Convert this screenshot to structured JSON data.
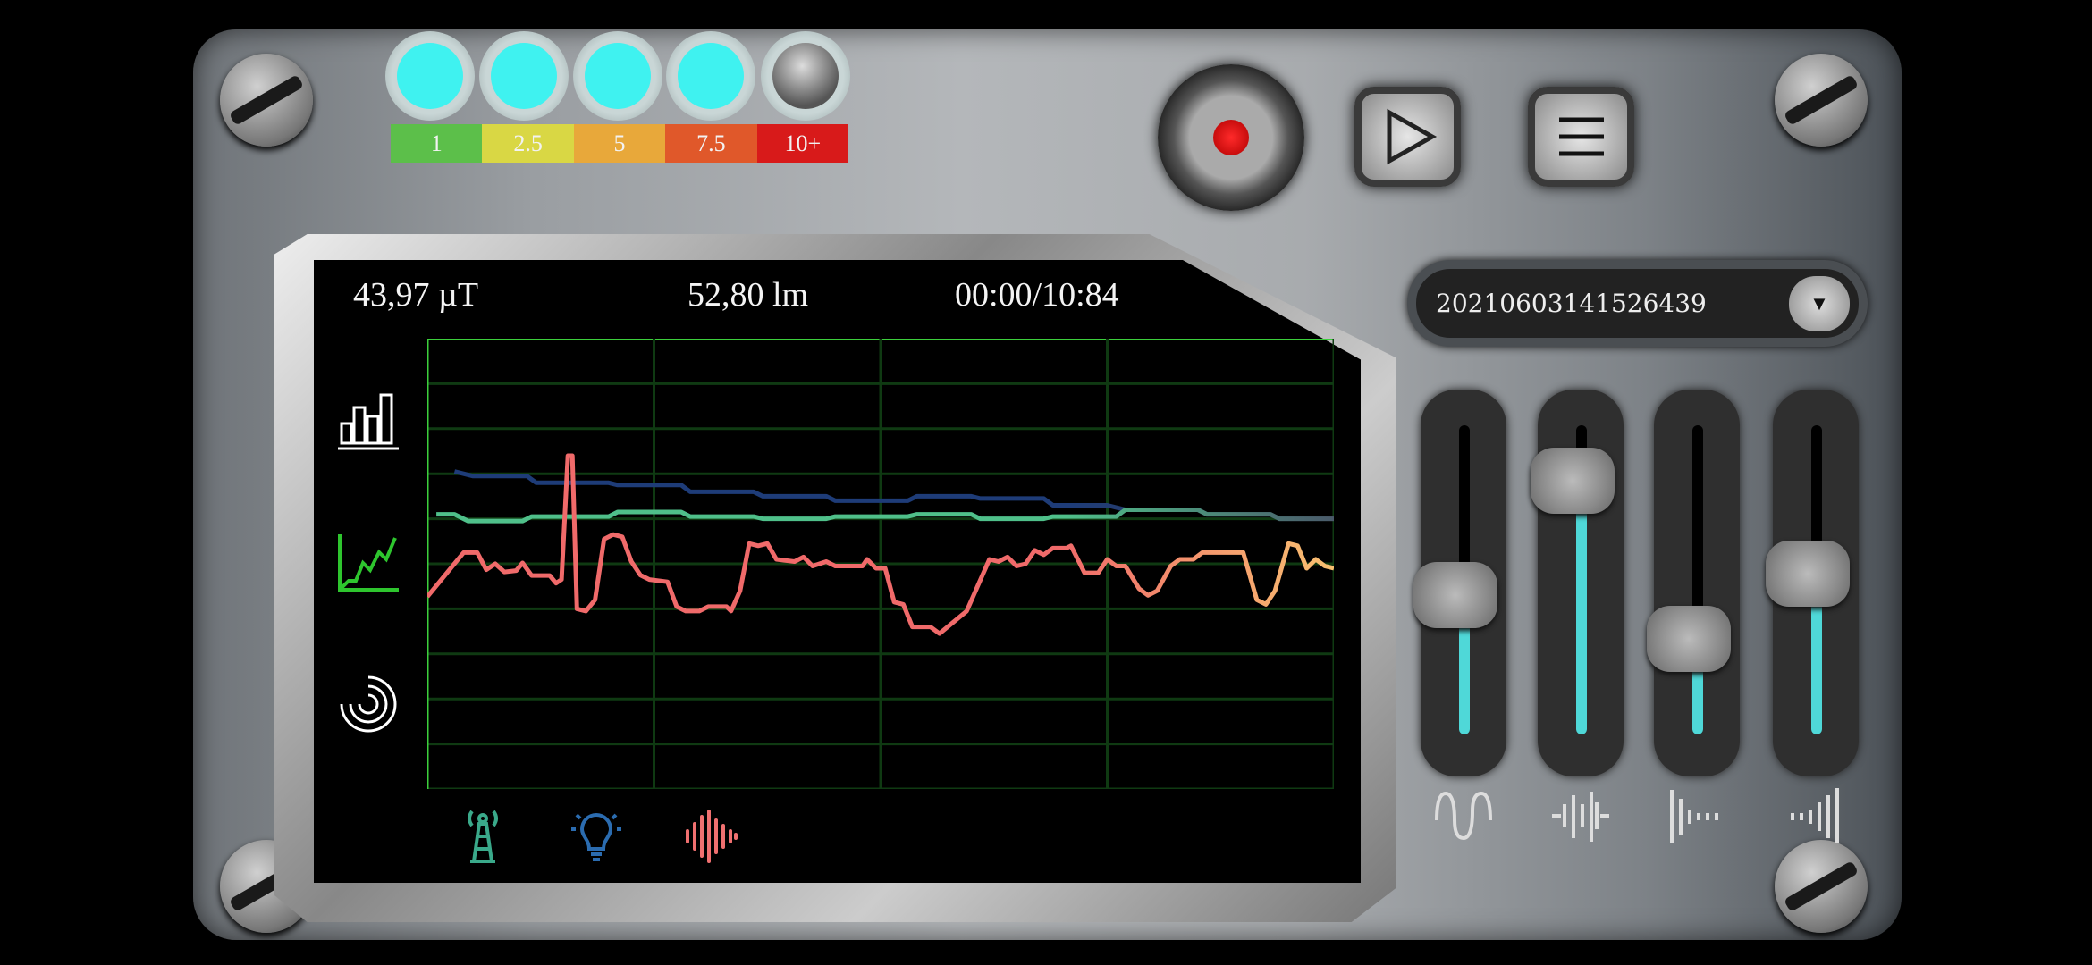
{
  "led_meter": {
    "levels": [
      "1",
      "2.5",
      "5",
      "7.5",
      "10+"
    ],
    "level_colors": [
      "#5cbf4a",
      "#d9d744",
      "#e8a83a",
      "#e0582a",
      "#d81a1a"
    ],
    "lit_count": 4,
    "lit_color": "#3ff2f0"
  },
  "toolbar": {
    "record_icon": "record-icon",
    "play_icon": "play-icon",
    "menu_icon": "menu-icon"
  },
  "recording_select": {
    "value": "20210603141526439"
  },
  "readouts": {
    "magnetic": "43,97 µT",
    "light": "52,80 lm",
    "time": "00:00/10:84"
  },
  "view_modes": [
    {
      "icon": "bar-chart-icon",
      "active": false
    },
    {
      "icon": "line-chart-icon",
      "active": true
    },
    {
      "icon": "radar-icon",
      "active": false
    }
  ],
  "sensor_icons": [
    {
      "icon": "emf-tower-icon",
      "color": "#3aa98a"
    },
    {
      "icon": "lightbulb-icon",
      "color": "#2b6cb0"
    },
    {
      "icon": "sound-wave-icon",
      "color": "#f07070"
    }
  ],
  "sliders": [
    {
      "icon": "wave-filter-icon",
      "value": 0.45
    },
    {
      "icon": "equalizer-icon",
      "value": 0.82
    },
    {
      "icon": "decay-icon",
      "value": 0.31
    },
    {
      "icon": "signal-rise-icon",
      "value": 0.52
    }
  ],
  "chart_data": {
    "type": "line",
    "title": "",
    "xlabel": "",
    "ylabel": "",
    "xlim": [
      0,
      100
    ],
    "ylim": [
      0,
      10
    ],
    "grid": true,
    "grid_rows": 10,
    "grid_cols": 4,
    "series": [
      {
        "color": "#1e3c78",
        "end_color": "#3a3f4a",
        "points": [
          [
            3,
            7.05
          ],
          [
            5,
            6.95
          ],
          [
            11,
            6.95
          ],
          [
            12,
            6.8
          ],
          [
            20,
            6.8
          ],
          [
            21,
            6.75
          ],
          [
            28,
            6.75
          ],
          [
            29,
            6.6
          ],
          [
            36,
            6.6
          ],
          [
            37,
            6.5
          ],
          [
            44,
            6.5
          ],
          [
            45,
            6.4
          ],
          [
            53,
            6.4
          ],
          [
            54,
            6.5
          ],
          [
            60,
            6.5
          ],
          [
            61,
            6.45
          ],
          [
            68,
            6.45
          ],
          [
            69,
            6.3
          ],
          [
            75,
            6.3
          ],
          [
            77,
            6.2
          ],
          [
            85,
            6.2
          ],
          [
            86,
            6.1
          ],
          [
            93,
            6.1
          ],
          [
            94,
            6.0
          ],
          [
            100,
            6.0
          ]
        ]
      },
      {
        "color": "#4fc08a",
        "end_color": "#4a5a6a",
        "points": [
          [
            1,
            6.1
          ],
          [
            3,
            6.1
          ],
          [
            4.5,
            5.95
          ],
          [
            10.5,
            5.95
          ],
          [
            11.5,
            6.05
          ],
          [
            20,
            6.05
          ],
          [
            21,
            6.15
          ],
          [
            28,
            6.15
          ],
          [
            29,
            6.05
          ],
          [
            36,
            6.05
          ],
          [
            37,
            6.0
          ],
          [
            44,
            6.0
          ],
          [
            45,
            6.05
          ],
          [
            53,
            6.05
          ],
          [
            54,
            6.1
          ],
          [
            60,
            6.1
          ],
          [
            61,
            6.0
          ],
          [
            68,
            6.0
          ],
          [
            69,
            6.05
          ],
          [
            76,
            6.05
          ],
          [
            77,
            6.2
          ],
          [
            85,
            6.2
          ],
          [
            86,
            6.1
          ],
          [
            93,
            6.1
          ],
          [
            94,
            6.0
          ],
          [
            100,
            6.0
          ]
        ]
      },
      {
        "color": "#f06a6a",
        "end_color": "#f8c070",
        "points": [
          [
            0,
            4.27
          ],
          [
            4,
            5.25
          ],
          [
            5.5,
            5.25
          ],
          [
            6.5,
            4.87
          ],
          [
            7.5,
            5.0
          ],
          [
            8.5,
            4.82
          ],
          [
            9.8,
            4.85
          ],
          [
            10.5,
            5.02
          ],
          [
            11.5,
            4.74
          ],
          [
            13.5,
            4.74
          ],
          [
            14.2,
            4.57
          ],
          [
            14.8,
            4.65
          ],
          [
            15.5,
            7.4
          ],
          [
            16,
            7.4
          ],
          [
            16.5,
            4.0
          ],
          [
            17.5,
            3.95
          ],
          [
            18.5,
            4.2
          ],
          [
            19.5,
            5.55
          ],
          [
            20.5,
            5.65
          ],
          [
            21.5,
            5.6
          ],
          [
            22.5,
            5.05
          ],
          [
            23.5,
            4.75
          ],
          [
            24.5,
            4.65
          ],
          [
            26.5,
            4.6
          ],
          [
            27.5,
            4.05
          ],
          [
            28.5,
            3.95
          ],
          [
            30,
            3.95
          ],
          [
            31,
            4.05
          ],
          [
            33,
            4.05
          ],
          [
            33.5,
            3.95
          ],
          [
            34.5,
            4.4
          ],
          [
            35.5,
            5.45
          ],
          [
            36.5,
            5.4
          ],
          [
            37.5,
            5.45
          ],
          [
            38.5,
            5.1
          ],
          [
            40.5,
            5.05
          ],
          [
            41.5,
            5.15
          ],
          [
            42.5,
            4.95
          ],
          [
            44,
            5.05
          ],
          [
            45,
            4.95
          ],
          [
            48,
            4.95
          ],
          [
            48.5,
            5.1
          ],
          [
            49.5,
            4.9
          ],
          [
            50.5,
            4.9
          ],
          [
            51.5,
            4.15
          ],
          [
            52.5,
            4.1
          ],
          [
            53.5,
            3.6
          ],
          [
            55.5,
            3.6
          ],
          [
            56.5,
            3.45
          ],
          [
            59.5,
            3.95
          ],
          [
            62,
            5.1
          ],
          [
            63,
            5.05
          ],
          [
            64,
            5.15
          ],
          [
            65,
            4.95
          ],
          [
            66,
            5.0
          ],
          [
            67,
            5.3
          ],
          [
            68,
            5.2
          ],
          [
            69,
            5.35
          ],
          [
            70.5,
            5.35
          ],
          [
            71,
            5.4
          ],
          [
            72.5,
            4.8
          ],
          [
            74,
            4.8
          ],
          [
            75,
            5.1
          ],
          [
            76,
            4.95
          ],
          [
            77,
            4.95
          ],
          [
            78.5,
            4.45
          ],
          [
            79.5,
            4.3
          ],
          [
            80.5,
            4.4
          ],
          [
            82,
            4.95
          ],
          [
            83,
            5.1
          ],
          [
            84.5,
            5.1
          ],
          [
            85.5,
            5.25
          ],
          [
            87,
            5.25
          ],
          [
            90,
            5.25
          ],
          [
            91.5,
            4.2
          ],
          [
            92.5,
            4.1
          ],
          [
            93.5,
            4.4
          ],
          [
            95,
            5.45
          ],
          [
            96,
            5.4
          ],
          [
            97,
            4.9
          ],
          [
            98,
            5.1
          ],
          [
            99,
            4.95
          ],
          [
            100,
            4.9
          ]
        ]
      }
    ]
  }
}
